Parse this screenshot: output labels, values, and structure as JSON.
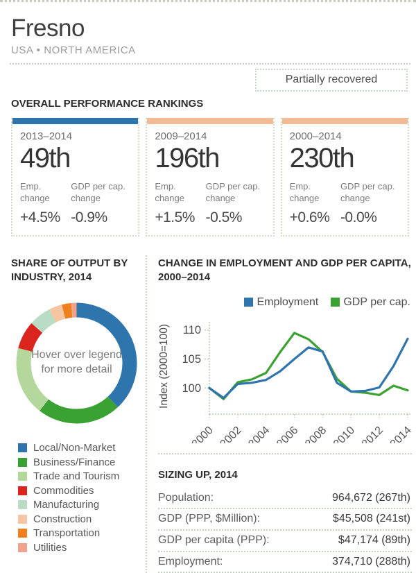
{
  "header": {
    "city": "Fresno",
    "region": "USA • NORTH AMERICA",
    "status": "Partially recovered"
  },
  "rankings": {
    "heading": "OVERALL PERFORMANCE RANKINGS",
    "emp_label": "Emp.\nchange",
    "gdp_label": "GDP per cap.\nchange",
    "cards": [
      {
        "period": "2013–2014",
        "rank": "49th",
        "emp_value": "+4.5%",
        "gdp_value": "-0.9%",
        "accent": "#2e74ad"
      },
      {
        "period": "2009–2014",
        "rank": "196th",
        "emp_value": "+1.5%",
        "gdp_value": "-0.5%",
        "accent": "#f3bb94"
      },
      {
        "period": "2000–2014",
        "rank": "230th",
        "emp_value": "+0.6%",
        "gdp_value": "-0.0%",
        "accent": "#f3bb94"
      }
    ]
  },
  "industry": {
    "heading": "SHARE OF OUTPUT BY INDUSTRY, 2014"
  },
  "employment_chart": {
    "heading": "CHANGE IN EMPLOYMENT AND GDP PER CAPITA, 2000–2014"
  },
  "sizing": {
    "heading": "SIZING UP, 2014",
    "rows": [
      {
        "label": "Population:",
        "value": "964,672 (267th)"
      },
      {
        "label": "GDP (PPP, $Million):",
        "value": "$45,508 (241st)"
      },
      {
        "label": "GDP per capita (PPP):",
        "value": "$47,174 (89th)"
      },
      {
        "label": "Employment:",
        "value": "374,710 (288th)"
      }
    ]
  },
  "chart_data": [
    {
      "type": "pie",
      "subtype": "donut",
      "title": "SHARE OF OUTPUT BY INDUSTRY, 2014",
      "note": "Hover over legend for more detail",
      "labels": [
        "Local/Non-Market",
        "Business/Finance",
        "Trade and Tourism",
        "Commodities",
        "Manufacturing",
        "Construction",
        "Transportation",
        "Utilities"
      ],
      "values": [
        38,
        22.5,
        18.5,
        7.5,
        6,
        3.5,
        2.5,
        1.5
      ],
      "colors": [
        "#2e74ad",
        "#3aa233",
        "#b4d79b",
        "#dc241f",
        "#b8dcc4",
        "#f6c5a1",
        "#f07f1e",
        "#efa38c"
      ],
      "legend_position": "bottom-left"
    },
    {
      "type": "line",
      "title": "CHANGE IN EMPLOYMENT AND GDP PER CAPITA, 2000–2014",
      "ylabel": "Index (2000=100)",
      "x": [
        2000,
        2001,
        2002,
        2003,
        2004,
        2005,
        2006,
        2007,
        2008,
        2009,
        2010,
        2011,
        2012,
        2013,
        2014
      ],
      "xticks": [
        2000,
        2002,
        2004,
        2006,
        2008,
        2010,
        2012,
        2014
      ],
      "yticks": [
        100,
        105,
        110
      ],
      "ylim": [
        95.5,
        112
      ],
      "grid": false,
      "legend_position": "top-right",
      "series": [
        {
          "name": "Employment",
          "color": "#2e74ad",
          "values": [
            100,
            98.3,
            100.7,
            100.9,
            101.4,
            102.9,
            105.0,
            107.0,
            106.3,
            100.9,
            99.4,
            99.5,
            100.1,
            103.8,
            108.5
          ]
        },
        {
          "name": "GDP per cap.",
          "color": "#3aa233",
          "values": [
            100,
            98.1,
            101.0,
            101.5,
            102.6,
            106.2,
            109.5,
            108.4,
            106.2,
            101.6,
            99.4,
            99.2,
            98.8,
            100.4,
            99.6
          ]
        }
      ]
    }
  ]
}
